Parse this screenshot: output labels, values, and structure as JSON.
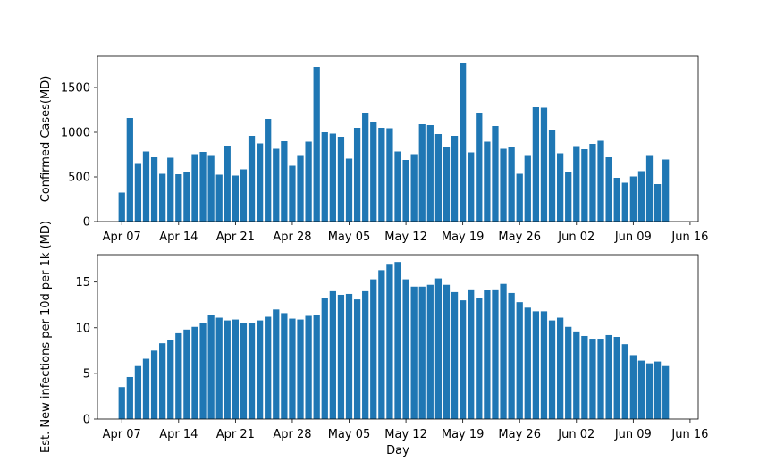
{
  "colors": {
    "bar": "#1f77b4",
    "axis": "#000000",
    "background": "#ffffff"
  },
  "chart_data": [
    {
      "type": "bar",
      "ylabel": "Confirmed Cases(MD)",
      "xlabel": "",
      "x_start": "2020-04-07",
      "xlim": [
        "2020-04-04",
        "2020-06-17"
      ],
      "x_ticks": [
        "Apr 07",
        "Apr 14",
        "Apr 21",
        "Apr 28",
        "May 05",
        "May 12",
        "May 19",
        "May 26",
        "Jun 02",
        "Jun 09",
        "Jun 16"
      ],
      "ylim": [
        0,
        1850
      ],
      "y_ticks": [
        "0",
        "500",
        "1000",
        "1500"
      ],
      "grid": false,
      "values": [
        325,
        1160,
        655,
        785,
        720,
        535,
        715,
        530,
        560,
        755,
        780,
        735,
        525,
        850,
        515,
        585,
        960,
        875,
        1150,
        815,
        900,
        625,
        735,
        895,
        1730,
        1000,
        985,
        950,
        705,
        1050,
        1210,
        1110,
        1050,
        1045,
        785,
        690,
        755,
        1090,
        1080,
        980,
        835,
        960,
        1780,
        775,
        1210,
        895,
        1070,
        815,
        835,
        535,
        735,
        1280,
        1275,
        1025,
        765,
        555,
        845,
        810,
        870,
        905,
        720,
        490,
        435,
        505,
        565,
        735,
        420,
        695
      ]
    },
    {
      "type": "bar",
      "ylabel": "Est. New infections per 10d per 1k (MD)",
      "xlabel": "Day",
      "x_start": "2020-04-07",
      "xlim": [
        "2020-04-04",
        "2020-06-17"
      ],
      "x_ticks": [
        "Apr 07",
        "Apr 14",
        "Apr 21",
        "Apr 28",
        "May 05",
        "May 12",
        "May 19",
        "May 26",
        "Jun 02",
        "Jun 09",
        "Jun 16"
      ],
      "ylim": [
        0,
        18
      ],
      "y_ticks": [
        "0",
        "5",
        "10",
        "15"
      ],
      "grid": false,
      "values": [
        3.5,
        4.6,
        5.8,
        6.6,
        7.5,
        8.3,
        8.7,
        9.4,
        9.8,
        10.1,
        10.5,
        11.4,
        11.1,
        10.8,
        10.9,
        10.5,
        10.5,
        10.8,
        11.2,
        12.0,
        11.6,
        11.0,
        10.9,
        11.3,
        11.4,
        13.3,
        14.0,
        13.6,
        13.7,
        13.1,
        14.0,
        15.3,
        16.3,
        16.9,
        17.2,
        15.3,
        14.5,
        14.5,
        14.7,
        15.4,
        14.7,
        13.9,
        13.0,
        14.2,
        13.3,
        14.1,
        14.2,
        14.8,
        13.8,
        12.8,
        12.2,
        11.8,
        11.8,
        10.8,
        11.1,
        10.1,
        9.6,
        9.1,
        8.8,
        8.8,
        9.2,
        9.0,
        8.2,
        7.0,
        6.4,
        6.1,
        6.3,
        5.8
      ]
    }
  ]
}
